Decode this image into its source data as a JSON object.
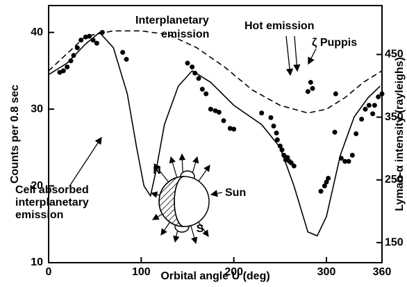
{
  "chart_data": {
    "type": "scatter",
    "xlabel": "Orbital angle U (deg)",
    "ylabel": "Counts per 0.8 sec",
    "y2label": "Lyman-α intensity (rayleighs)",
    "xlim": [
      0,
      360
    ],
    "xticks": [
      0,
      100,
      200,
      300,
      360
    ],
    "ylim": [
      10,
      43.5
    ],
    "yticks": [
      10,
      20,
      30,
      40
    ],
    "y2lim": [
      118,
      528
    ],
    "y2ticks": [
      150,
      250,
      350,
      450
    ],
    "annotations": [
      "Interplanetary",
      "emission",
      "Hot emission",
      "ζ Puppis",
      "Cell absorbed",
      "interplanetary",
      "emission",
      "N",
      "S",
      "Sun"
    ],
    "series": [
      {
        "type": "scatter",
        "color": "#000000",
        "x": [
          12,
          16,
          20,
          24,
          27,
          31,
          35,
          40,
          44,
          48,
          52,
          58,
          80,
          84,
          150,
          155,
          158,
          162,
          166,
          170,
          175,
          180,
          184,
          189,
          196,
          200,
          230,
          240,
          243,
          246,
          247,
          250,
          252,
          254,
          256,
          258,
          260,
          262,
          265,
          280,
          283,
          285,
          294,
          298,
          300,
          302,
          309,
          310,
          316,
          320,
          324,
          328,
          332,
          338,
          342,
          346,
          350,
          352,
          356,
          360
        ],
        "values": [
          34.8,
          35,
          35.5,
          36.3,
          37,
          38,
          39,
          39.4,
          39.5,
          39,
          38.6,
          40,
          37.4,
          36.5,
          36,
          35.5,
          34.7,
          34,
          32.6,
          32,
          30,
          29.8,
          29.6,
          28.5,
          27.5,
          27.4,
          29.5,
          28.9,
          27.8,
          26.9,
          26,
          25.2,
          24.7,
          24,
          23.4,
          23.7,
          23.2,
          23,
          22.6,
          32.3,
          33.5,
          32.7,
          19.3,
          20,
          20.5,
          21,
          27,
          32,
          23.6,
          23.2,
          23.2,
          24,
          26.8,
          28.7,
          30,
          30.5,
          29.4,
          30.5,
          31.6,
          32
        ]
      },
      {
        "type": "line",
        "color": "#000000",
        "x": [
          0,
          20,
          40,
          55,
          70,
          85,
          95,
          103,
          110,
          116,
          125,
          140,
          155,
          175,
          200,
          230,
          250,
          265,
          280,
          290,
          300,
          315,
          330,
          345,
          358
        ],
        "values": [
          34.5,
          36,
          38.5,
          40,
          38,
          32,
          25,
          20,
          18.7,
          22,
          28,
          33,
          35,
          33.5,
          30.5,
          28,
          25,
          20,
          14,
          13.5,
          16,
          24,
          29,
          31.5,
          33
        ]
      },
      {
        "type": "line",
        "dashed": true,
        "color": "#000000",
        "x": [
          0,
          40,
          70,
          100,
          130,
          160,
          190,
          220,
          250,
          280,
          300,
          320,
          340,
          360
        ],
        "values": [
          35,
          39.5,
          40.2,
          40.2,
          39.7,
          38,
          35.5,
          32.5,
          30.5,
          29.5,
          30,
          31.5,
          33.5,
          35
        ]
      }
    ]
  }
}
